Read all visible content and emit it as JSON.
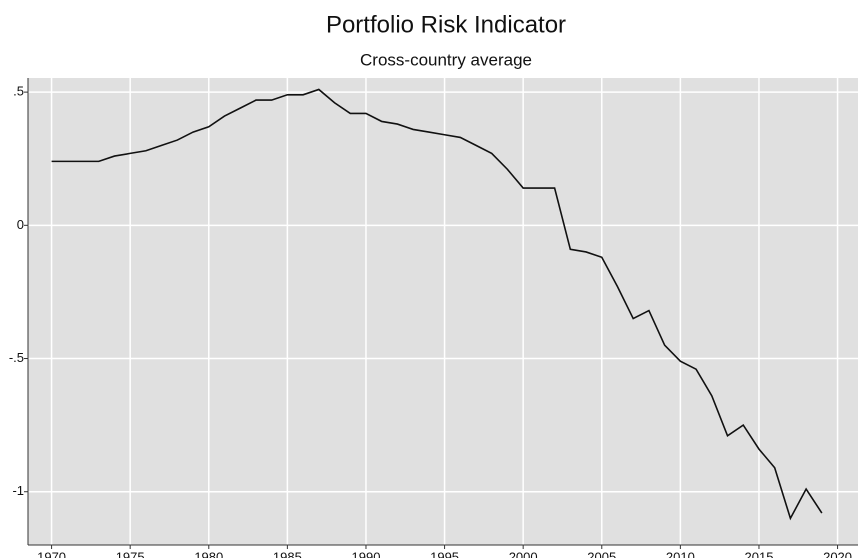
{
  "chart_data": {
    "type": "line",
    "title": "Portfolio Risk Indicator",
    "subtitle": "Cross-country average",
    "x": [
      1970,
      1971,
      1972,
      1973,
      1974,
      1975,
      1976,
      1977,
      1978,
      1979,
      1980,
      1981,
      1982,
      1983,
      1984,
      1985,
      1986,
      1987,
      1988,
      1989,
      1990,
      1991,
      1992,
      1993,
      1994,
      1995,
      1996,
      1997,
      1998,
      1999,
      2000,
      2001,
      2002,
      2003,
      2004,
      2005,
      2006,
      2007,
      2008,
      2009,
      2010,
      2011,
      2012,
      2013,
      2014,
      2015,
      2016,
      2017,
      2018,
      2019
    ],
    "series": [
      {
        "color": "#111111",
        "values": [
          0.24,
          0.24,
          0.24,
          0.24,
          0.26,
          0.27,
          0.28,
          0.3,
          0.32,
          0.35,
          0.37,
          0.41,
          0.44,
          0.47,
          0.47,
          0.49,
          0.49,
          0.51,
          0.46,
          0.42,
          0.42,
          0.39,
          0.38,
          0.36,
          0.35,
          0.34,
          0.33,
          0.3,
          0.27,
          0.21,
          0.14,
          0.14,
          0.14,
          -0.09,
          -0.1,
          -0.12,
          -0.23,
          -0.35,
          -0.32,
          -0.45,
          -0.51,
          -0.54,
          -0.64,
          -0.79,
          -0.75,
          -0.84,
          -0.91,
          -1.1,
          -0.99,
          -1.08
        ]
      }
    ],
    "xlim": [
      1968.5,
      2021.3
    ],
    "xticks": [
      1970,
      1975,
      1980,
      1985,
      1990,
      1995,
      2000,
      2005,
      2010,
      2015,
      2020
    ],
    "ylim": [
      -1.2,
      0.553
    ],
    "yticks": [
      {
        "value": -1,
        "label": "-1"
      },
      {
        "value": -0.5,
        "label": "-.5"
      },
      0,
      {
        "value": 0.5,
        "label": ".5"
      }
    ],
    "grid": true,
    "background": "#e0e0e0"
  }
}
